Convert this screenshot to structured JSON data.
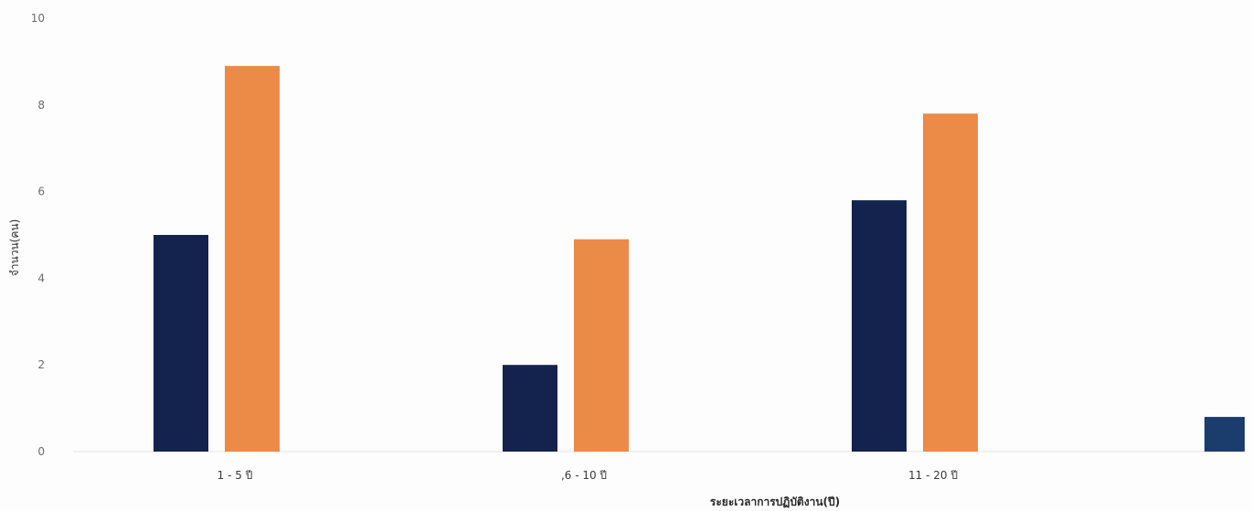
{
  "chart_data": {
    "type": "bar",
    "title": "",
    "xlabel": "ระยะเวลาการปฏิบัติงาน(ปี)",
    "ylabel": "จำนวน(คน)",
    "ylim": [
      0,
      10
    ],
    "yticks": [
      "0",
      "2",
      "4",
      "6",
      "8",
      "10"
    ],
    "categories": [
      "1 - 5 ปี",
      ",6 - 10 ปี",
      "11 - 20 ปี",
      ""
    ],
    "series": [
      {
        "color": "#14234d",
        "values": [
          5,
          2,
          5.8,
          0.8
        ]
      },
      {
        "color": "#ec8a48",
        "values": [
          8.9,
          4.9,
          7.8,
          null
        ]
      }
    ],
    "grid": false,
    "legend": "none"
  }
}
